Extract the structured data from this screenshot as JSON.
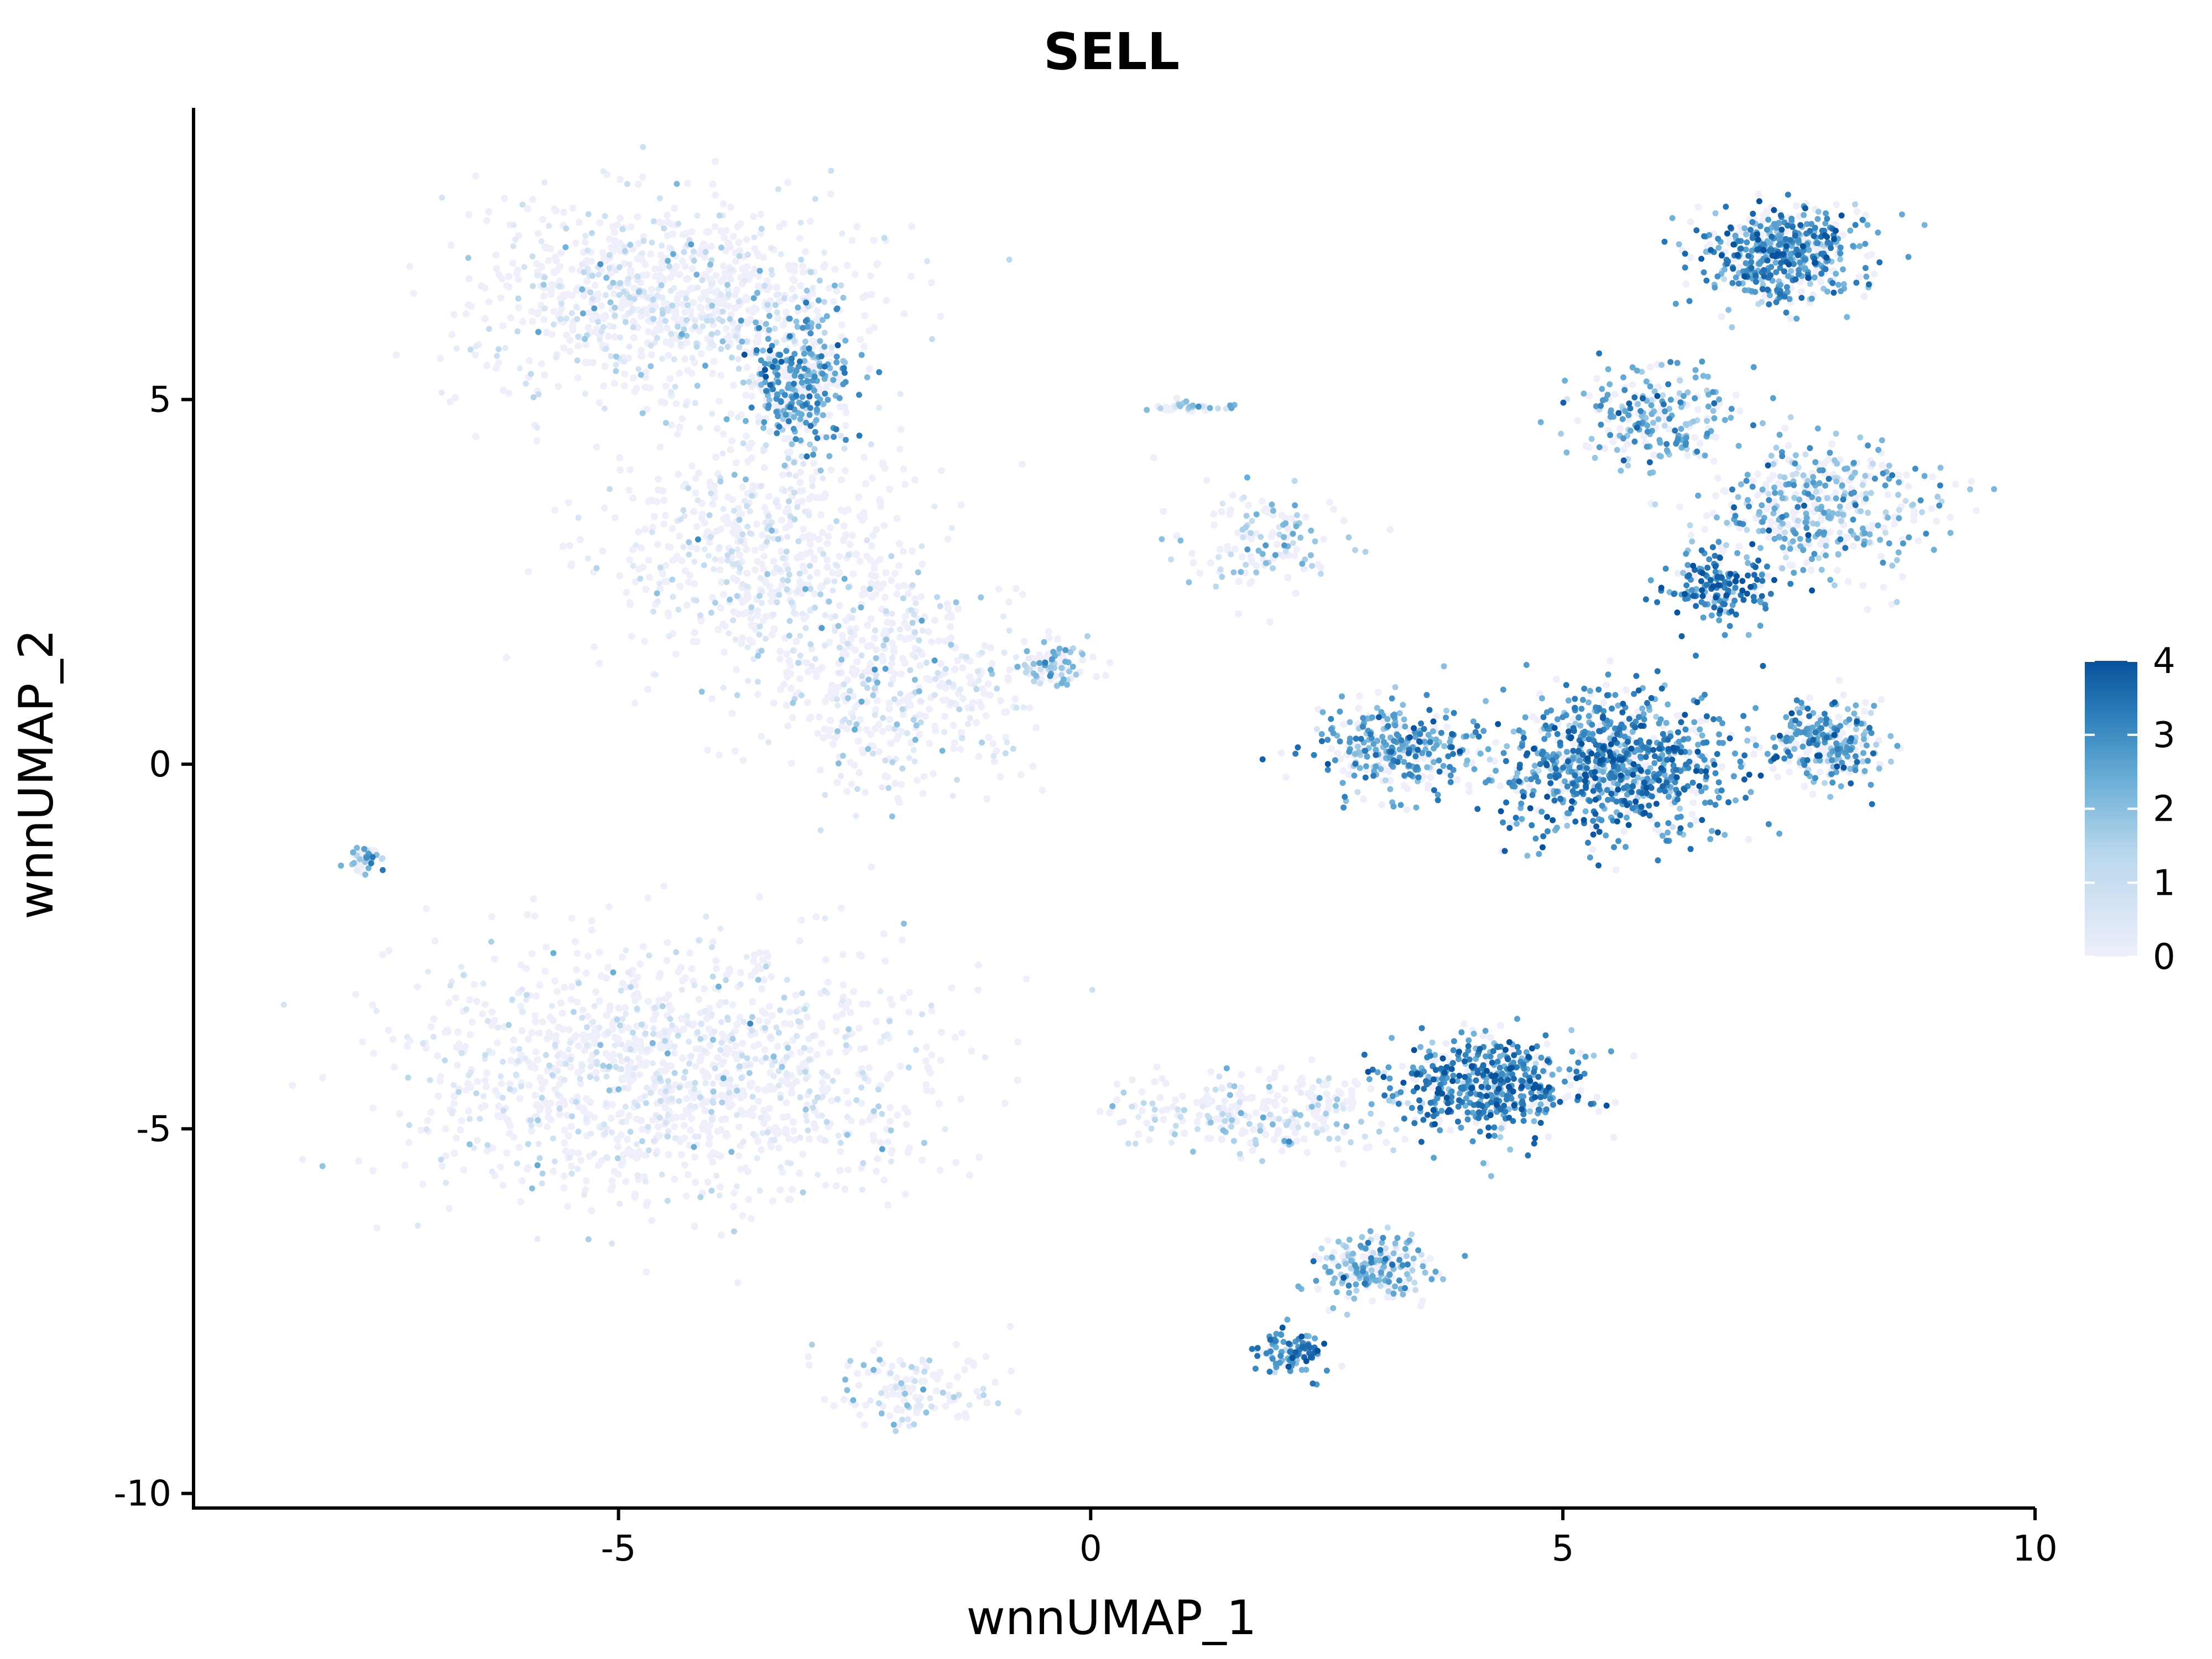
{
  "chart_data": {
    "type": "scatter",
    "title": "SELL",
    "xlabel": "wnnUMAP_1",
    "ylabel": "wnnUMAP_2",
    "xlim": [
      -9.5,
      10
    ],
    "ylim": [
      -10.2,
      9.0
    ],
    "x_ticks": [
      -5,
      0,
      5,
      10
    ],
    "x_tick_labels": [
      "-5",
      "0",
      "5",
      "10"
    ],
    "y_ticks": [
      -10,
      -5,
      0,
      5
    ],
    "y_tick_labels": [
      "-10",
      "-5",
      "0",
      "5"
    ],
    "grid": false,
    "legend": {
      "placement": "right",
      "type": "continuous colorbar",
      "range": [
        0,
        4
      ],
      "ticks": [
        0,
        1,
        2,
        3,
        4
      ],
      "tick_labels": [
        "0",
        "1",
        "2",
        "3",
        "4"
      ]
    },
    "color_scale": {
      "low": "#eeeffb",
      "mid": "#6aaed6",
      "high": "#08519c"
    },
    "clusters": [
      {
        "center": [
          -4.5,
          6.4
        ],
        "spread": [
          1.9,
          1.2
        ],
        "level": 0.8,
        "share": 0.1
      },
      {
        "center": [
          -3.1,
          5.3
        ],
        "spread": [
          0.5,
          0.8
        ],
        "level": 2.6,
        "share": 0.04
      },
      {
        "center": [
          -3.5,
          2.9
        ],
        "spread": [
          1.6,
          1.6
        ],
        "level": 0.7,
        "share": 0.07
      },
      {
        "center": [
          -2.0,
          1.1
        ],
        "spread": [
          1.3,
          1.3
        ],
        "level": 1.0,
        "share": 0.05
      },
      {
        "center": [
          -0.4,
          1.4
        ],
        "spread": [
          0.3,
          0.3
        ],
        "level": 1.9,
        "share": 0.01
      },
      {
        "center": [
          1.8,
          3.1
        ],
        "spread": [
          0.8,
          0.7
        ],
        "level": 1.6,
        "share": 0.015
      },
      {
        "center": [
          7.3,
          7.0
        ],
        "spread": [
          0.8,
          0.6
        ],
        "level": 2.8,
        "share": 0.06
      },
      {
        "center": [
          6.0,
          4.8
        ],
        "spread": [
          0.8,
          0.6
        ],
        "level": 2.4,
        "share": 0.025
      },
      {
        "center": [
          7.7,
          3.5
        ],
        "spread": [
          1.1,
          0.8
        ],
        "level": 2.2,
        "share": 0.05
      },
      {
        "center": [
          6.6,
          2.4
        ],
        "spread": [
          0.5,
          0.4
        ],
        "level": 3.2,
        "share": 0.02
      },
      {
        "center": [
          5.6,
          0.0
        ],
        "spread": [
          1.2,
          0.9
        ],
        "level": 3.0,
        "share": 0.1
      },
      {
        "center": [
          3.2,
          0.2
        ],
        "spread": [
          0.7,
          0.6
        ],
        "level": 2.6,
        "share": 0.035
      },
      {
        "center": [
          7.8,
          0.3
        ],
        "spread": [
          0.5,
          0.5
        ],
        "level": 2.6,
        "share": 0.03
      },
      {
        "center": [
          -4.5,
          -4.2
        ],
        "spread": [
          2.5,
          1.6
        ],
        "level": 0.6,
        "share": 0.15
      },
      {
        "center": [
          -7.7,
          -1.3
        ],
        "spread": [
          0.2,
          0.15
        ],
        "level": 2.2,
        "share": 0.005
      },
      {
        "center": [
          4.2,
          -4.4
        ],
        "spread": [
          0.9,
          0.6
        ],
        "level": 3.0,
        "share": 0.06
      },
      {
        "center": [
          1.8,
          -4.8
        ],
        "spread": [
          1.4,
          0.5
        ],
        "level": 1.3,
        "share": 0.03
      },
      {
        "center": [
          3.0,
          -6.9
        ],
        "spread": [
          0.6,
          0.4
        ],
        "level": 2.2,
        "share": 0.025
      },
      {
        "center": [
          2.1,
          -8.1
        ],
        "spread": [
          0.35,
          0.3
        ],
        "level": 3.0,
        "share": 0.012
      },
      {
        "center": [
          -1.8,
          -8.5
        ],
        "spread": [
          0.8,
          0.5
        ],
        "level": 1.1,
        "share": 0.015
      },
      {
        "center": [
          1.0,
          4.9
        ],
        "spread": [
          0.4,
          0.08
        ],
        "level": 1.7,
        "share": 0.004
      }
    ]
  }
}
